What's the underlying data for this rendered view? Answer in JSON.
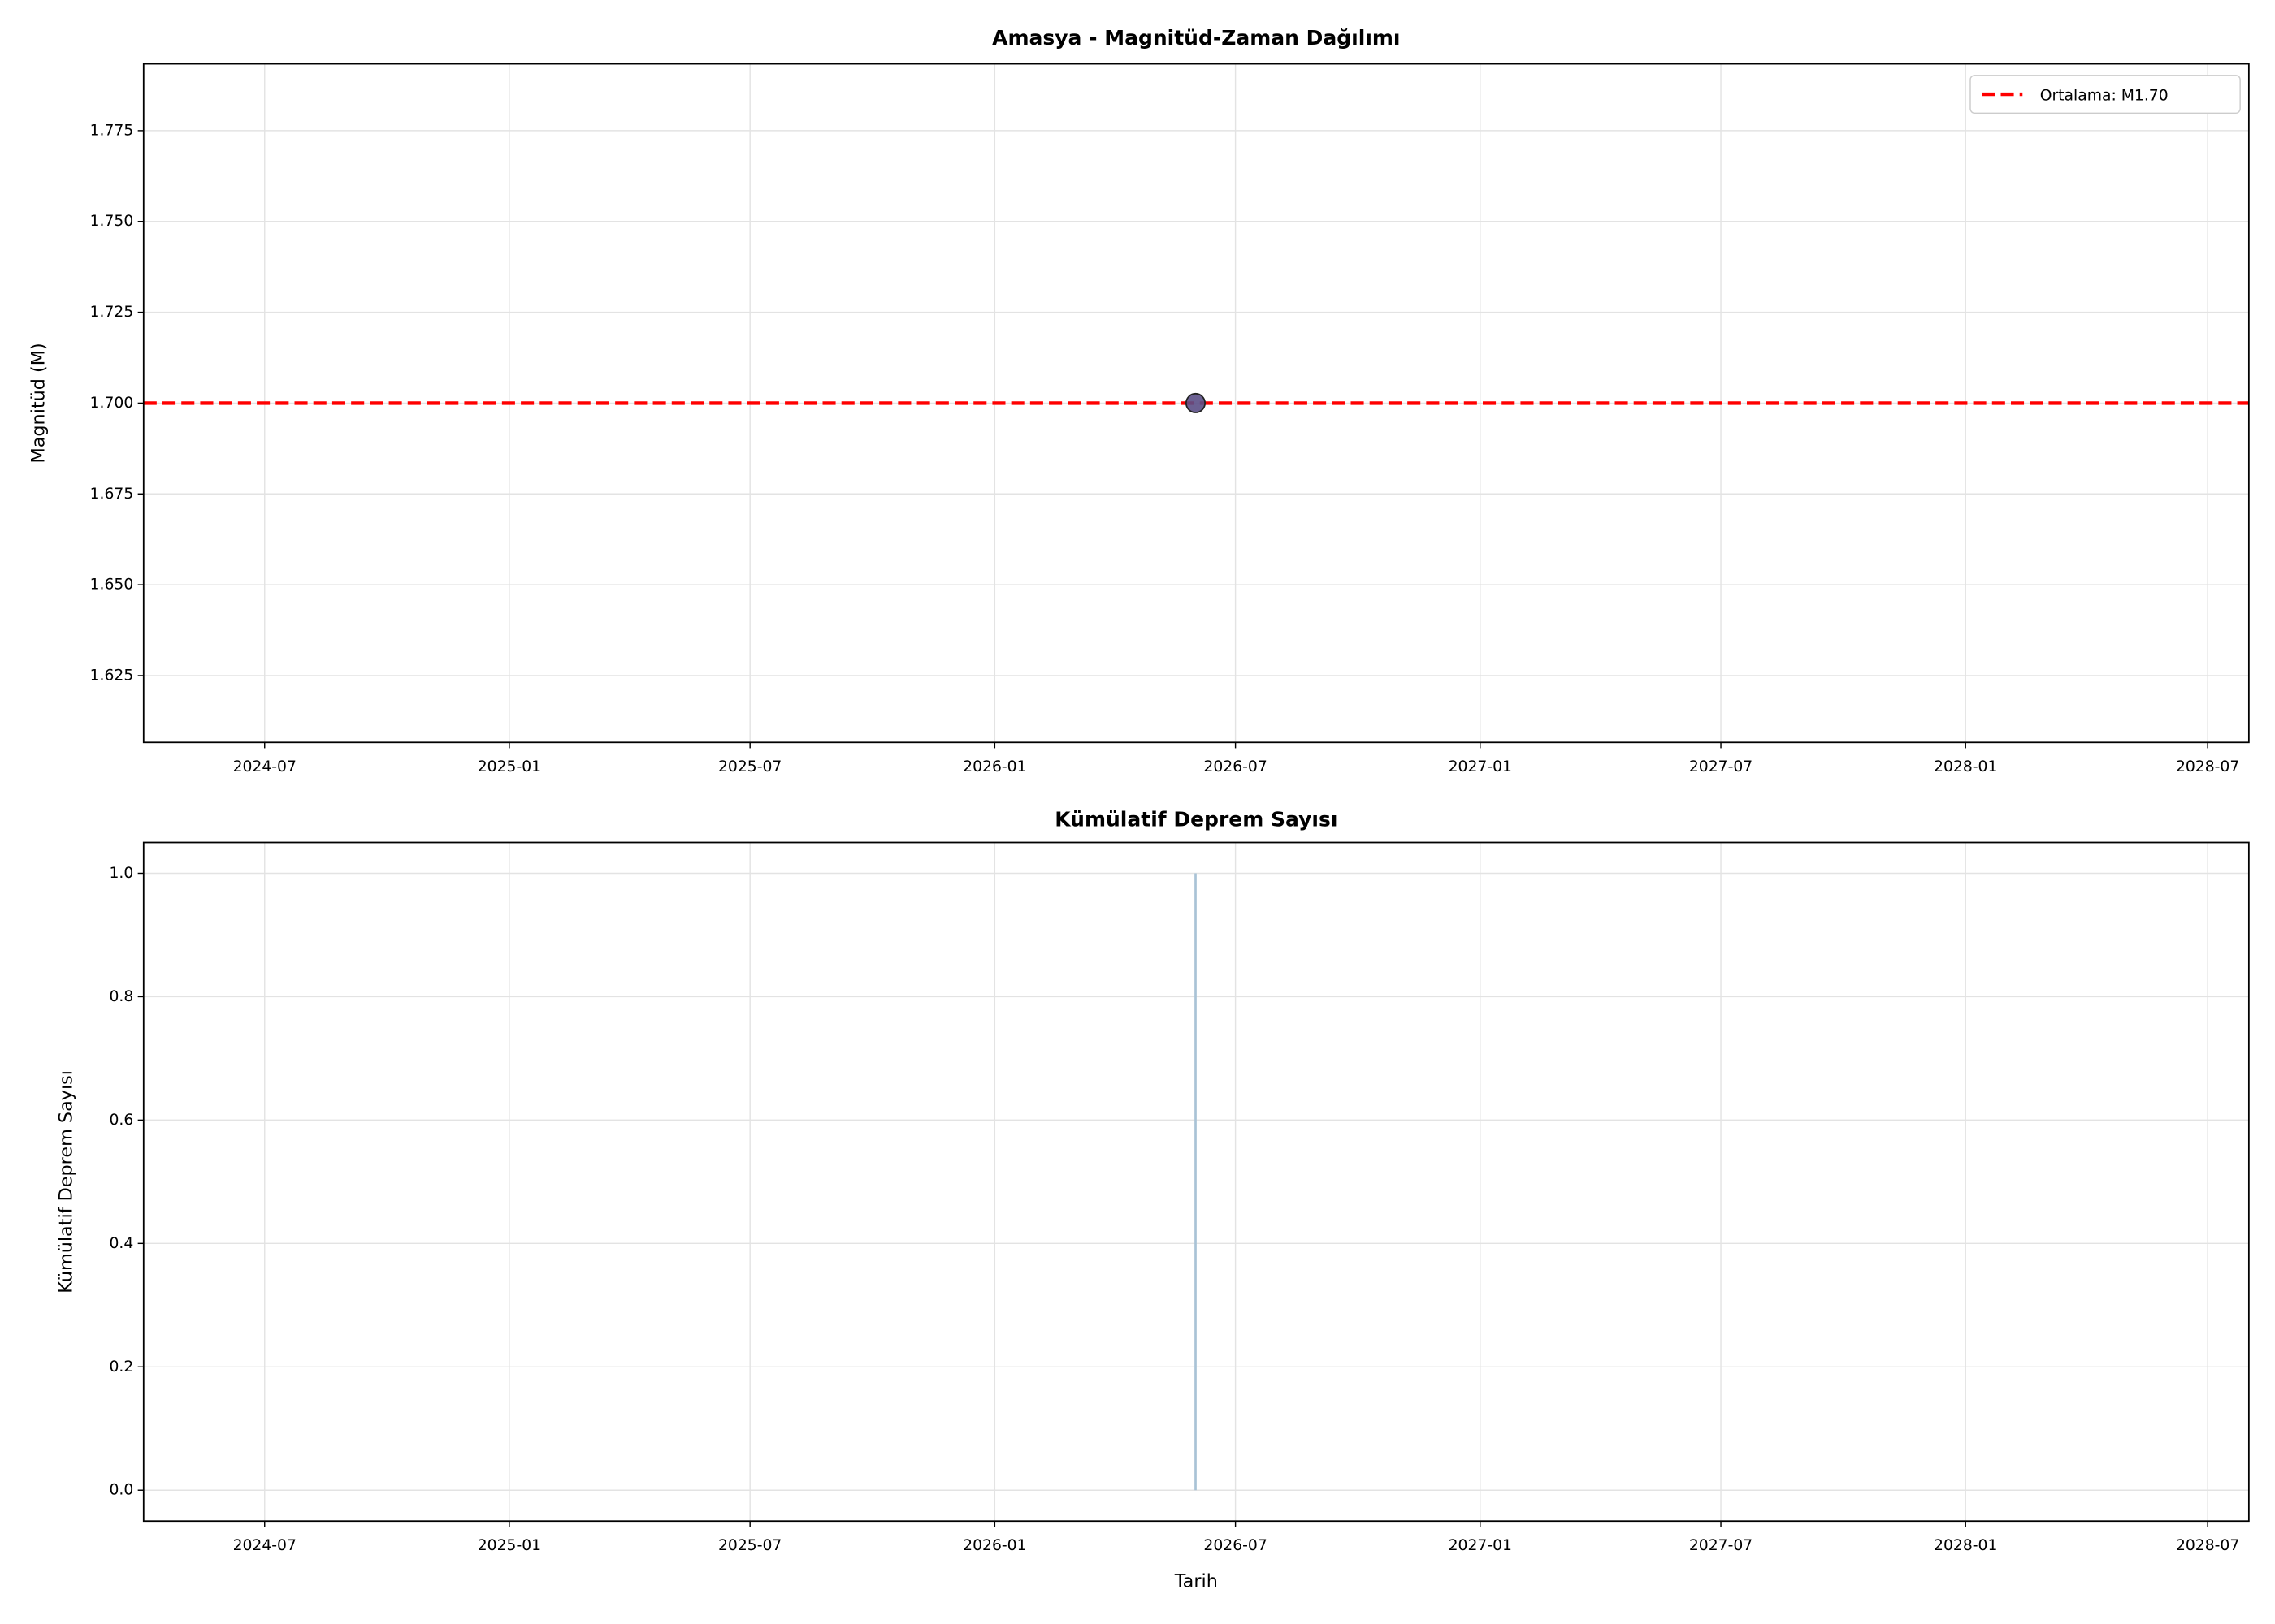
{
  "chart_data": [
    {
      "type": "scatter",
      "title": "Amasya - Magnitüd-Zaman Dağılımı",
      "ylabel": "Magnitüd (M)",
      "x": [
        "2026-06"
      ],
      "series": [
        {
          "name": null,
          "color": "#5b4f86",
          "values": [
            1.7
          ]
        }
      ],
      "hline": {
        "value": 1.7,
        "label": "Ortalama: M1.70",
        "color": "#ff0000"
      },
      "legend": "upper right",
      "xlim": [
        "2024-04",
        "2028-08"
      ],
      "xticks": [
        "2024-07",
        "2025-01",
        "2025-07",
        "2026-01",
        "2026-07",
        "2027-01",
        "2027-07",
        "2028-01",
        "2028-07"
      ],
      "ylim": [
        1.6066,
        1.7934
      ],
      "yticks": [
        1.625,
        {
          "value": 1.65,
          "label": "1.650"
        },
        1.675,
        {
          "value": 1.7,
          "label": "1.700"
        },
        1.725,
        {
          "value": 1.75,
          "label": "1.750"
        },
        1.775
      ],
      "grid": true
    },
    {
      "type": "area",
      "title": "Kümülatif Deprem Sayısı",
      "ylabel": "Kümülatif Deprem Sayısı",
      "xlabel": "Tarih",
      "x": [
        "2026-06"
      ],
      "series": [
        {
          "name": null,
          "color": "#a9c3d6",
          "values": [
            1
          ]
        }
      ],
      "xlim": [
        "2024-04",
        "2028-08"
      ],
      "xticks": [
        "2024-07",
        "2025-01",
        "2025-07",
        "2026-01",
        "2026-07",
        "2027-01",
        "2027-07",
        "2028-01",
        "2028-07"
      ],
      "ylim": [
        -0.05,
        1.05
      ],
      "yticks": [
        {
          "value": 0,
          "label": "0.0"
        },
        0.2,
        0.4,
        0.6,
        0.8,
        {
          "value": 1,
          "label": "1.0"
        }
      ],
      "grid": true
    }
  ]
}
